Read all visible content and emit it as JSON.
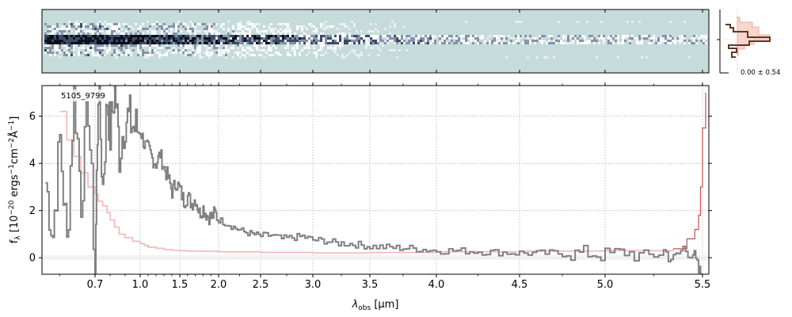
{
  "chart_data": {
    "type": "line",
    "object_label": "5105_9799",
    "xlabel": "λobs [μm]",
    "xlabel_parts": {
      "sym": "λ",
      "sub": "obs",
      "unit": " [μm]"
    },
    "ylabel": "fλ [10−20 ergs−1cm−2Å−1]",
    "x_ticks": [
      "0.7",
      "1.0",
      "1.5",
      "2.0",
      "2.5",
      "3.0",
      "3.5",
      "4.0",
      "4.5",
      "5.0",
      "5.5"
    ],
    "x_tick_values": [
      0.7,
      1.0,
      1.5,
      2.0,
      2.5,
      3.0,
      3.5,
      4.0,
      4.5,
      5.0,
      5.5
    ],
    "y_ticks": [
      "0",
      "2",
      "4",
      "6"
    ],
    "y_tick_values": [
      0,
      2,
      4,
      6
    ],
    "xlim": [
      0.55,
      5.52
    ],
    "ylim": [
      -0.7,
      7.3
    ],
    "x_scale": "reciprocal-like (spacing compressed at long wavelengths)",
    "grid": true,
    "profile_annotation": "0.00 ± 0.54",
    "colors": {
      "data": "#808080",
      "model": "#f4b6b6",
      "model_end": "#c05050",
      "spectrum_2d_bg": "#c5dcdb",
      "profile_line": "#5a3a2a",
      "profile_fill": "#f9d5cc"
    },
    "series": [
      {
        "role": "data",
        "x": [
          0.56,
          0.58,
          0.6,
          0.62,
          0.64,
          0.66,
          0.68,
          0.7,
          0.72,
          0.75,
          0.78,
          0.8,
          0.83,
          0.86,
          0.9,
          0.93,
          0.96,
          1.0,
          1.05,
          1.1,
          1.15,
          1.2,
          1.25,
          1.3,
          1.35,
          1.4,
          1.45,
          1.5,
          1.55,
          1.6,
          1.65,
          1.7,
          1.75,
          1.8,
          1.85,
          1.9,
          1.95,
          2.0,
          2.1,
          2.2,
          2.3,
          2.4,
          2.5,
          2.6,
          2.7,
          2.8,
          2.9,
          3.0,
          3.1,
          3.2,
          3.3,
          3.4,
          3.5,
          3.6,
          3.7,
          3.8,
          3.9,
          4.0,
          4.1,
          4.2,
          4.3,
          4.4,
          4.5,
          4.6,
          4.7,
          4.8,
          4.9,
          5.0,
          5.1,
          5.2,
          5.3,
          5.35,
          5.4,
          5.45,
          5.48,
          5.5
        ],
        "y": [
          3.2,
          1.0,
          5.0,
          0.5,
          7.3,
          2.5,
          6.5,
          -0.7,
          7.3,
          3.0,
          6.8,
          5.2,
          7.3,
          4.5,
          6.0,
          5.8,
          5.5,
          5.4,
          4.8,
          4.6,
          4.2,
          4.0,
          4.4,
          3.8,
          3.4,
          2.8,
          3.2,
          2.9,
          2.4,
          2.6,
          2.3,
          2.5,
          1.9,
          2.1,
          1.8,
          1.7,
          1.9,
          1.6,
          1.45,
          1.25,
          1.1,
          1.0,
          0.92,
          0.95,
          0.8,
          0.85,
          0.9,
          0.75,
          0.72,
          0.62,
          0.6,
          0.55,
          0.48,
          0.45,
          0.42,
          0.4,
          0.35,
          0.3,
          0.3,
          0.28,
          0.25,
          0.22,
          0.2,
          0.18,
          0.2,
          0.15,
          0.2,
          0.1,
          0.25,
          0.0,
          0.3,
          -0.1,
          0.4,
          0.2,
          -0.6,
          -0.7
        ]
      },
      {
        "role": "model",
        "x": [
          0.6,
          0.62,
          0.64,
          0.66,
          0.68,
          0.7,
          0.72,
          0.75,
          0.78,
          0.8,
          0.83,
          0.86,
          0.9,
          0.95,
          1.0,
          1.05,
          1.1,
          1.2,
          1.3,
          1.4,
          1.5,
          1.6,
          1.8,
          2.0,
          2.5,
          3.0,
          3.5,
          4.0,
          4.5,
          5.0,
          5.2,
          5.35,
          5.42,
          5.46,
          5.48,
          5.49,
          5.5,
          5.51
        ],
        "y": [
          6.2,
          5.0,
          4.3,
          3.6,
          3.0,
          2.7,
          2.4,
          2.2,
          1.9,
          1.6,
          1.3,
          1.0,
          0.85,
          0.7,
          0.6,
          0.52,
          0.45,
          0.4,
          0.35,
          0.32,
          0.3,
          0.28,
          0.27,
          0.25,
          0.22,
          0.2,
          0.22,
          0.25,
          0.28,
          0.3,
          0.3,
          0.38,
          0.8,
          1.2,
          1.8,
          3.0,
          5.5,
          7.0
        ]
      }
    ]
  }
}
